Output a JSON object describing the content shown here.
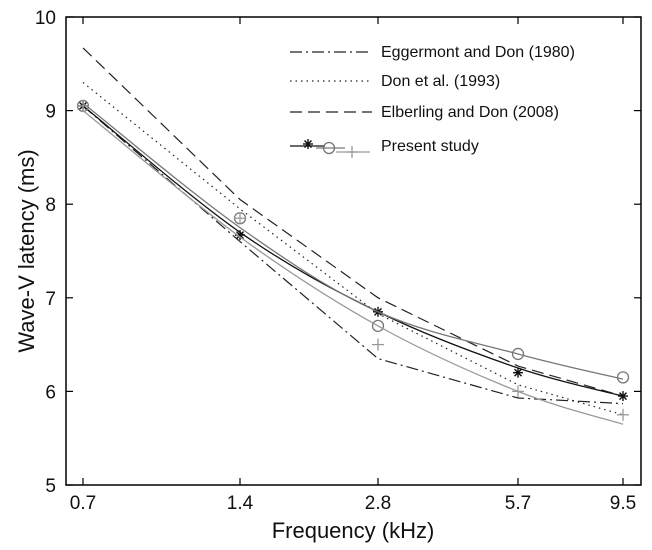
{
  "chart_data": {
    "type": "line",
    "title": "",
    "xlabel": "Frequency (kHz)",
    "ylabel": "Wave-V latency (ms)",
    "x": [
      0.7,
      1.4,
      2.8,
      5.7,
      9.5
    ],
    "x_tick_labels": [
      "0.7",
      "1.4",
      "2.8",
      "5.7",
      "9.5"
    ],
    "y_ticks": [
      5,
      6,
      7,
      8,
      9,
      10
    ],
    "ylim": [
      5,
      10
    ],
    "grid": false,
    "legend_position": "top-right",
    "series": [
      {
        "name": "Eggermont and Don (1980)",
        "style": "dashdot",
        "color": "#222222",
        "values": [
          9.05,
          7.6,
          6.35,
          5.93,
          5.87
        ]
      },
      {
        "name": "Don et al. (1993)",
        "style": "dotted",
        "color": "#222222",
        "values": [
          9.3,
          7.95,
          6.83,
          6.07,
          5.75
        ]
      },
      {
        "name": "Elberling and Don (2008)",
        "style": "dashed",
        "color": "#222222",
        "values": [
          9.67,
          8.05,
          7.0,
          6.27,
          5.95
        ]
      },
      {
        "name": "Present study",
        "style": "composite",
        "components": [
          {
            "marker": "asterisk",
            "color": "#111111",
            "points": [
              9.05,
              7.67,
              6.85,
              6.2,
              5.95
            ],
            "fit": [
              9.05,
              7.7,
              6.85,
              6.25,
              5.95
            ]
          },
          {
            "marker": "circle",
            "color": "#777777",
            "points": [
              9.05,
              7.85,
              6.7,
              6.4,
              6.15
            ],
            "fit": [
              9.08,
              7.75,
              6.85,
              6.4,
              6.13
            ]
          },
          {
            "marker": "plus",
            "color": "#999999",
            "points": [
              9.05,
              7.85,
              6.5,
              6.0,
              5.75
            ],
            "fit": [
              9.0,
              7.65,
              6.7,
              6.0,
              5.65
            ]
          }
        ]
      }
    ]
  }
}
